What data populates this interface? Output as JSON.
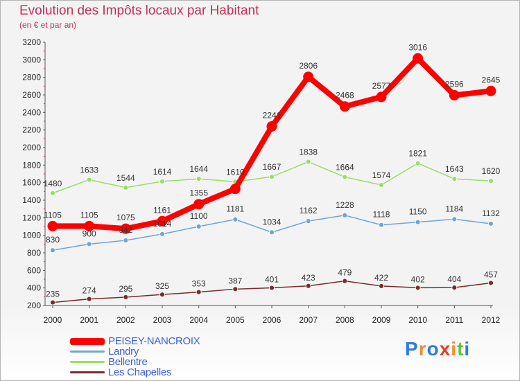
{
  "chart_data": {
    "type": "line",
    "title": "Evolution des Impôts locaux par Habitant",
    "subtitle": "(en € et par an)",
    "categories": [
      "2000",
      "2001",
      "2002",
      "2003",
      "2004",
      "2005",
      "2006",
      "2007",
      "2008",
      "2009",
      "2010",
      "2011",
      "2012"
    ],
    "ylim": [
      200,
      3200
    ],
    "yticks": [
      200,
      400,
      600,
      800,
      1000,
      1200,
      1400,
      1600,
      1800,
      2000,
      2200,
      2400,
      2600,
      2800,
      3000,
      3200
    ],
    "grid": false,
    "legend_position": "bottom-left",
    "series": [
      {
        "name": "PEISEY-NANCROIX",
        "color": "#ff0000",
        "values": [
          1105,
          1105,
          1075,
          1161,
          1355,
          1529,
          2241,
          2806,
          2468,
          2577,
          3016,
          2596,
          2645
        ],
        "labels": [
          "1105",
          "1105",
          "1075",
          "1161",
          "1355",
          "",
          "2241",
          "2806",
          "2468",
          "2577",
          "3016",
          "2596",
          "2645"
        ]
      },
      {
        "name": "Landry",
        "color": "#6ea5d8",
        "values": [
          830,
          900,
          942,
          1014,
          1100,
          1181,
          1034,
          1162,
          1228,
          1118,
          1150,
          1184,
          1132
        ],
        "labels": [
          "830",
          "900",
          "942",
          "1014",
          "1100",
          "1181",
          "1034",
          "1162",
          "1228",
          "1118",
          "1150",
          "1184",
          "1132"
        ]
      },
      {
        "name": "Bellentre",
        "color": "#99dd66",
        "values": [
          1480,
          1633,
          1544,
          1614,
          1644,
          1610,
          1667,
          1838,
          1664,
          1574,
          1821,
          1643,
          1620
        ],
        "labels": [
          "1480",
          "1633",
          "1544",
          "1614",
          "1644",
          "1610",
          "1667",
          "1838",
          "1664",
          "1574",
          "1821",
          "1643",
          "1620"
        ]
      },
      {
        "name": "Les Chapelles",
        "color": "#7a2a2a",
        "values": [
          235,
          274,
          295,
          325,
          353,
          387,
          401,
          423,
          479,
          422,
          402,
          404,
          457
        ],
        "labels": [
          "235",
          "274",
          "295",
          "325",
          "353",
          "387",
          "401",
          "423",
          "479",
          "422",
          "402",
          "404",
          "457"
        ]
      }
    ]
  },
  "logo": {
    "letters": [
      "P",
      "r",
      "o",
      "x",
      "i",
      "t",
      "i"
    ],
    "colors": [
      "#2a7de1",
      "#f28c28",
      "#2a7de1",
      "#e43d2b",
      "#f28c28",
      "#6abf3b",
      "#2a7de1"
    ]
  }
}
